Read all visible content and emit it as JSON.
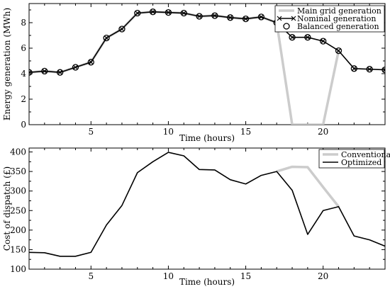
{
  "chart_data": [
    {
      "type": "line",
      "title": "",
      "xlabel": "Time (hours)",
      "ylabel": "Energy generation (MWh)",
      "xlim": [
        1,
        24
      ],
      "ylim": [
        0,
        9.5
      ],
      "xticks": [
        5,
        10,
        15,
        20
      ],
      "yticks": [
        0,
        2,
        4,
        6,
        8
      ],
      "grid": false,
      "legend_position": "top-right",
      "x": [
        1,
        2,
        3,
        4,
        5,
        6,
        7,
        8,
        9,
        10,
        11,
        12,
        13,
        14,
        15,
        16,
        17,
        18,
        19,
        20,
        21,
        22,
        23,
        24
      ],
      "series": [
        {
          "name": "Main grid generation",
          "color": "#cccccc",
          "marker": "none",
          "x": [
            1,
            2,
            3,
            4,
            5,
            6,
            7,
            8,
            9,
            10,
            11,
            12,
            13,
            14,
            15,
            16,
            17,
            18,
            19,
            20,
            21
          ],
          "values": [
            4.1,
            4.2,
            4.1,
            4.5,
            4.9,
            6.8,
            7.5,
            8.75,
            8.85,
            8.8,
            8.75,
            8.5,
            8.55,
            8.4,
            8.3,
            8.45,
            8.0,
            0,
            0,
            0,
            5.8
          ]
        },
        {
          "name": "Nominal generation",
          "color": "#000000",
          "marker": "x",
          "values": [
            4.1,
            4.2,
            4.1,
            4.5,
            4.9,
            6.8,
            7.5,
            8.75,
            8.85,
            8.8,
            8.75,
            8.5,
            8.55,
            8.4,
            8.3,
            8.45,
            8.0,
            6.85,
            6.85,
            6.55,
            5.8,
            4.4,
            4.35,
            4.3
          ]
        },
        {
          "name": "Balanced generation",
          "color": "#000000",
          "marker": "circle",
          "values": [
            4.1,
            4.2,
            4.1,
            4.5,
            4.9,
            6.8,
            7.5,
            8.75,
            8.85,
            8.8,
            8.75,
            8.5,
            8.55,
            8.4,
            8.3,
            8.45,
            8.0,
            6.85,
            6.85,
            6.55,
            5.8,
            4.4,
            4.35,
            4.3
          ]
        }
      ]
    },
    {
      "type": "line",
      "title": "",
      "xlabel": "Time (hours)",
      "ylabel": "Cost of dispatch (£)",
      "xlim": [
        1,
        24
      ],
      "ylim": [
        100,
        410
      ],
      "xticks": [
        5,
        10,
        15,
        20
      ],
      "yticks": [
        100,
        150,
        200,
        250,
        300,
        350,
        400
      ],
      "grid": false,
      "legend_position": "top-right",
      "series": [
        {
          "name": "Conventional",
          "color": "#cccccc",
          "x": [
            17,
            18,
            19,
            20,
            21
          ],
          "values": [
            350,
            362,
            361,
            310,
            260
          ]
        },
        {
          "name": "Optimized",
          "color": "#000000",
          "x": [
            1,
            2,
            3,
            4,
            5,
            6,
            7,
            8,
            9,
            10,
            11,
            12,
            13,
            14,
            15,
            16,
            17,
            18,
            19,
            20,
            21,
            22,
            23,
            24
          ],
          "values": [
            143,
            142,
            133,
            133,
            143,
            213,
            263,
            347,
            375,
            399,
            390,
            355,
            354,
            329,
            318,
            340,
            350,
            302,
            189,
            250,
            260,
            185,
            175,
            159
          ]
        }
      ]
    }
  ]
}
